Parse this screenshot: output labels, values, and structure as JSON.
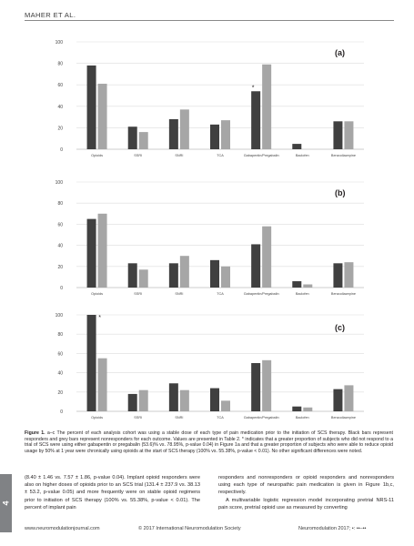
{
  "header": {
    "author": "MAHER ET AL."
  },
  "chart_data": [
    {
      "type": "bar",
      "panel_label": "(a)",
      "categories": [
        "Opioids",
        "SSRI",
        "SNRI",
        "TCA",
        "Gabapentin/Pregabalin",
        "Baclofen",
        "Benzodiazepine"
      ],
      "series": [
        {
          "color": "#404040",
          "values": [
            78,
            21,
            28,
            23,
            54,
            5,
            26
          ]
        },
        {
          "color": "#a6a6a6",
          "values": [
            61,
            16,
            37,
            27,
            79,
            0,
            26
          ]
        }
      ],
      "annotations": [
        {
          "text": "*",
          "category": "Gabapentin/Pregabalin",
          "series": 0
        }
      ],
      "ylim": [
        0,
        100
      ],
      "yticks": [
        "0",
        "20",
        "40",
        "60",
        "80",
        "100"
      ],
      "grid": true
    },
    {
      "type": "bar",
      "panel_label": "(b)",
      "categories": [
        "Opioids",
        "SSRI",
        "SNRI",
        "TCA",
        "Gabapentin/Pregabalin",
        "Baclofen",
        "Benzodiazepine"
      ],
      "series": [
        {
          "color": "#404040",
          "values": [
            65,
            23,
            23,
            26,
            41,
            6,
            23
          ]
        },
        {
          "color": "#a6a6a6",
          "values": [
            70,
            17,
            30,
            20,
            58,
            3,
            24
          ]
        }
      ],
      "annotations": [],
      "ylim": [
        0,
        100
      ],
      "yticks": [
        "0",
        "20",
        "40",
        "60",
        "80",
        "100"
      ],
      "grid": true
    },
    {
      "type": "bar",
      "panel_label": "(c)",
      "categories": [
        "Opioids",
        "SSRI",
        "SNRI",
        "TCA",
        "Gabapentin/Pregabalin",
        "Baclofen",
        "Benzodiazepine"
      ],
      "series": [
        {
          "color": "#404040",
          "values": [
            100,
            18,
            29,
            24,
            50,
            5,
            23
          ]
        },
        {
          "color": "#a6a6a6",
          "values": [
            55,
            22,
            22,
            11,
            53,
            4,
            27
          ]
        }
      ],
      "annotations": [
        {
          "text": "*",
          "category": "Opioids",
          "series": 0
        }
      ],
      "ylim": [
        0,
        100
      ],
      "yticks": [
        "0",
        "20",
        "40",
        "60",
        "80",
        "100"
      ],
      "grid": true
    }
  ],
  "caption": {
    "label": "Figure 1.",
    "text": "a–c The percent of each analysis cohort was using a stable dose of each type of pain medication prior to the initiation of SCS therapy. Black bars represent responders and grey bars represent nonresponders for each outcome. Values are presented in Table 2. * indicates that a greater proportion of subjects who did not respond to a trial of SCS were using either gabapentin or pregabalin (53.6)% vs. 78.95%, p-value 0.04) in Figure 1a and that a greater proportion of subjects who were able to reduce opioid usage by 50% at 1 year were chronically using opioids at the start of SCS therapy (100% vs. 55.38%, p-value < 0.01). No other significant differences were noted."
  },
  "body": {
    "left": "(8.40 ± 1.46 vs. 7.57 ± 1.86, p-value 0.04). Implant opioid responders were also on higher doses of opioids prior to an SCS trial (131.4 ± 237.9 vs. 38.13 ± 53.2, p-value 0.05) and more frequently were on stable opioid regimens prior to initiation of SCS therapy (100% vs. 55.38%, p-value < 0.01). The percent of implant pain",
    "right_p1": "responders and nonresponders or opioid responders and nonresponders using each type of neuropathic pain medication is given in Figure 1b,c, respectively.",
    "right_p2": "A multivariable logistic regression model incorporating pretrial NRS-11 pain score, pretrial opioid use as measured by converting"
  },
  "side_tab": "4",
  "footer": {
    "website": "www.neuromodulationjournal.com",
    "copyright": "© 2017 International Neuromodulation Society",
    "journal": "Neuromodulation 2017; •: ••–••"
  }
}
